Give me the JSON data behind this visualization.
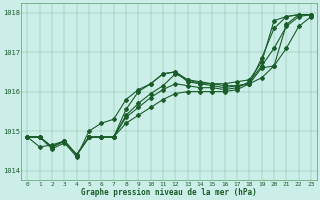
{
  "title": "Graphe pression niveau de la mer (hPa)",
  "background_color": "#cceee8",
  "grid_color": "#5a9e6e",
  "line_color": "#1a5c2a",
  "xlim": [
    -0.5,
    23.5
  ],
  "ylim": [
    1013.75,
    1018.25
  ],
  "yticks": [
    1014,
    1015,
    1016,
    1017,
    1018
  ],
  "xticks": [
    0,
    1,
    2,
    3,
    4,
    5,
    6,
    7,
    8,
    9,
    10,
    11,
    12,
    13,
    14,
    15,
    16,
    17,
    18,
    19,
    20,
    21,
    22,
    23
  ],
  "series": [
    [
      1014.85,
      1014.85,
      1014.6,
      1014.75,
      1014.4,
      1014.85,
      1014.85,
      1014.85,
      1015.55,
      1016.0,
      1016.2,
      1016.45,
      1016.5,
      1016.25,
      1016.2,
      1016.2,
      1016.15,
      1016.15,
      1016.2,
      1016.6,
      1016.65,
      1017.7,
      1017.95,
      1017.95
    ],
    [
      1014.85,
      1014.85,
      1014.6,
      1014.75,
      1014.4,
      1014.85,
      1014.85,
      1014.85,
      1015.4,
      1015.7,
      1015.95,
      1016.15,
      1016.45,
      1016.3,
      1016.2,
      1016.15,
      1016.1,
      1016.15,
      1016.2,
      1016.85,
      1017.6,
      1017.9,
      1017.95,
      1017.95
    ],
    [
      1014.85,
      1014.85,
      1014.6,
      1014.75,
      1014.4,
      1014.85,
      1014.85,
      1014.85,
      1015.35,
      1015.6,
      1015.85,
      1016.05,
      1016.2,
      1016.15,
      1016.1,
      1016.1,
      1016.05,
      1016.1,
      1016.25,
      1016.65,
      1017.1,
      1017.65,
      1017.9,
      1017.95
    ],
    [
      1014.85,
      1014.6,
      1014.65,
      1014.75,
      1014.4,
      1014.85,
      1014.85,
      1014.85,
      1015.2,
      1015.4,
      1015.6,
      1015.8,
      1015.95,
      1016.0,
      1016.0,
      1016.0,
      1016.0,
      1016.05,
      1016.2,
      1016.35,
      1016.65,
      1017.1,
      1017.65,
      1017.9
    ]
  ],
  "series_solo": [
    1014.85,
    1014.85,
    1014.55,
    1014.7,
    1014.35,
    1015.0,
    1015.2,
    1015.3,
    1015.8,
    1016.05,
    1016.2,
    1016.45,
    1016.5,
    1016.3,
    1016.25,
    1016.2,
    1016.2,
    1016.25,
    1016.3,
    1016.75,
    1017.8,
    1017.9,
    1017.95,
    1017.95
  ]
}
